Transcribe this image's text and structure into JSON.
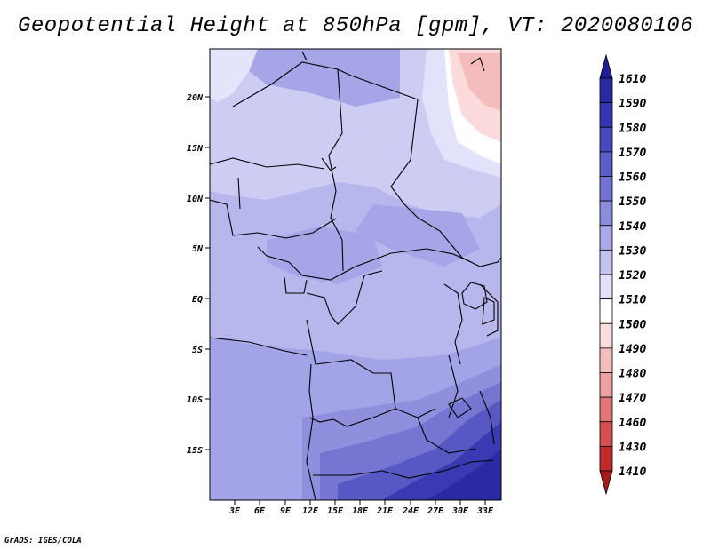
{
  "title": "Geopotential Height at 850hPa [gpm], VT: 2020080106",
  "credit": "GrADS: IGES/COLA",
  "map": {
    "lat_labels": [
      "20N",
      "15N",
      "10N",
      "5N",
      "EQ",
      "5S",
      "10S",
      "15S"
    ],
    "lon_labels": [
      "3E",
      "6E",
      "9E",
      "12E",
      "15E",
      "18E",
      "21E",
      "24E",
      "27E",
      "30E",
      "33E"
    ]
  },
  "colorbar": {
    "levels": [
      "1610",
      "1590",
      "1580",
      "1570",
      "1560",
      "1550",
      "1540",
      "1530",
      "1520",
      "1510",
      "1500",
      "1490",
      "1480",
      "1470",
      "1460",
      "1430",
      "1410"
    ],
    "colors": [
      "#1e1e96",
      "#2a2aa6",
      "#3636b4",
      "#4848c0",
      "#5c5ccb",
      "#7272d4",
      "#8c8cdf",
      "#a8a8ea",
      "#c4c4f2",
      "#e2e2fa",
      "#ffffff",
      "#fadede",
      "#f4bebe",
      "#eca0a0",
      "#e27676",
      "#d64e4e",
      "#c22a2a",
      "#a81a1a"
    ]
  }
}
